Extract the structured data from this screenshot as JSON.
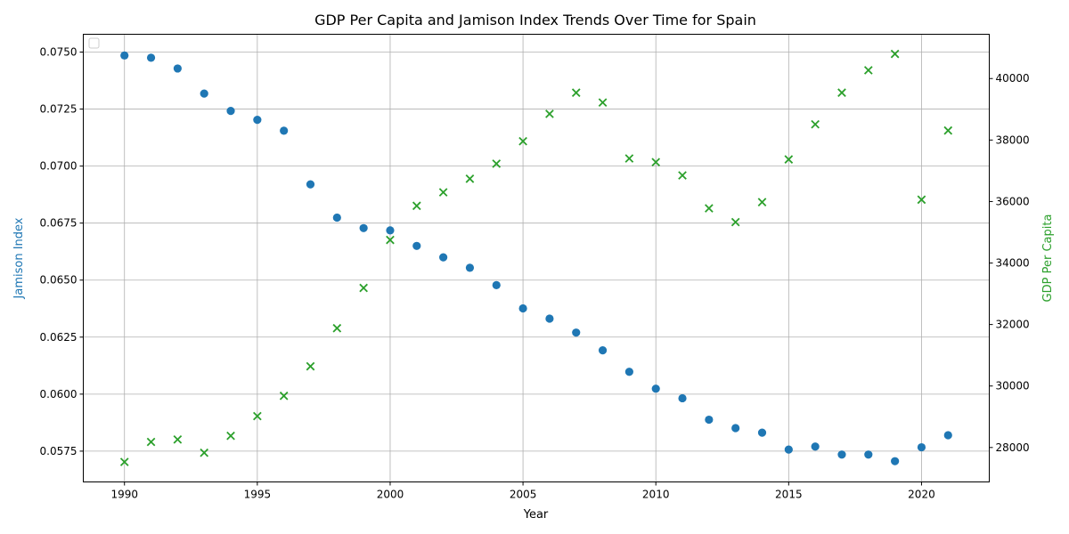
{
  "chart_data": {
    "type": "scatter",
    "title": "GDP Per Capita and Jamison Index Trends Over Time for Spain",
    "xlabel": "Year",
    "ylabel_left": "Jamison Index",
    "ylabel_right": "GDP Per Capita",
    "xlim": [
      1988.45,
      2022.55
    ],
    "ylim_left": [
      0.05615,
      0.07578
    ],
    "ylim_right": [
      26880,
      41440
    ],
    "x_ticks": [
      1990,
      1995,
      2000,
      2005,
      2010,
      2015,
      2020
    ],
    "y_left_ticks": [
      "0.0575",
      "0.0600",
      "0.0625",
      "0.0650",
      "0.0675",
      "0.0700",
      "0.0725",
      "0.0750"
    ],
    "y_right_ticks": [
      "28000",
      "30000",
      "32000",
      "34000",
      "36000",
      "38000",
      "40000"
    ],
    "grid": true,
    "legend": "top-left (empty)",
    "colors": {
      "jamison": "#1f77b4",
      "gdp": "#2ca02c"
    },
    "x": [
      1990,
      1991,
      1992,
      1993,
      1994,
      1995,
      1996,
      1997,
      1998,
      1999,
      2000,
      2001,
      2002,
      2003,
      2004,
      2005,
      2006,
      2007,
      2008,
      2009,
      2010,
      2011,
      2012,
      2013,
      2014,
      2015,
      2016,
      2017,
      2018,
      2019,
      2020,
      2021
    ],
    "series": [
      {
        "name": "Jamison Index",
        "axis": "left",
        "marker": "circle",
        "values": [
          0.07485,
          0.07475,
          0.07428,
          0.07318,
          0.07242,
          0.07203,
          0.07155,
          0.0692,
          0.06774,
          0.06728,
          0.06718,
          0.0665,
          0.066,
          0.06554,
          0.06478,
          0.06376,
          0.06331,
          0.0627,
          0.06192,
          0.06098,
          0.06024,
          0.05982,
          0.05888,
          0.05851,
          0.05831,
          0.05757,
          0.0577,
          0.05735,
          0.05735,
          0.05706,
          0.05767,
          0.0582
        ]
      },
      {
        "name": "GDP Per Capita",
        "axis": "right",
        "marker": "x",
        "values": [
          27530,
          28180,
          28260,
          27830,
          28380,
          29020,
          29680,
          30640,
          31880,
          33190,
          34750,
          35860,
          36300,
          36740,
          37230,
          37960,
          38850,
          39540,
          39220,
          37400,
          37280,
          36850,
          35780,
          35330,
          35980,
          37370,
          38510,
          39540,
          40270,
          40800,
          36060,
          38310
        ]
      }
    ]
  }
}
